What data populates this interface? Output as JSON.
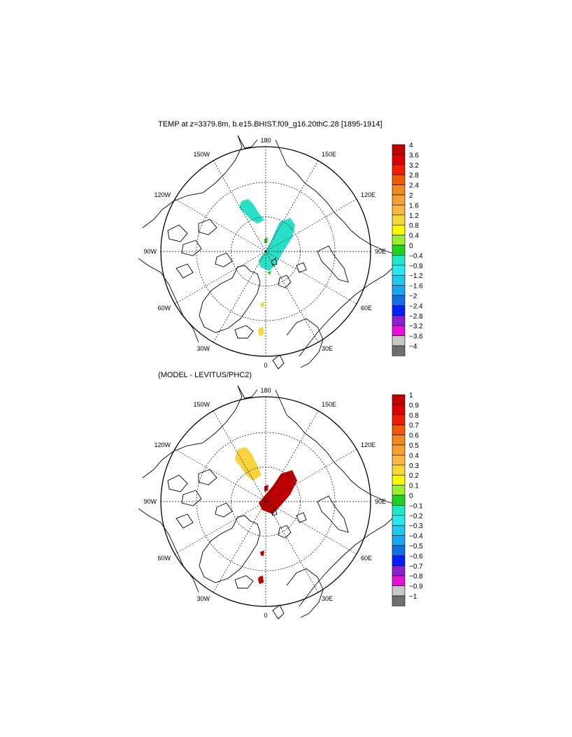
{
  "panels": [
    {
      "title": "TEMP at z=3379.8m, b.e15.BHIST.f09_g16.20thC.28 [1895-1914]",
      "colorbar": {
        "labels": [
          "4",
          "3.6",
          "3.2",
          "2.8",
          "2.4",
          "2",
          "1.6",
          "1.2",
          "0.8",
          "0.4",
          "0",
          "−0.4",
          "−0.8",
          "−1.2",
          "−1.6",
          "−2",
          "−2.4",
          "−2.8",
          "−3.2",
          "−3.6",
          "−4"
        ],
        "colors": [
          "#c00000",
          "#d80000",
          "#f01e00",
          "#f05a00",
          "#f08a1e",
          "#f5a030",
          "#f8b840",
          "#f5d83a",
          "#f8f800",
          "#9aee30",
          "#1ed21e",
          "#1ee8c8",
          "#2ae8f0",
          "#20c8f0",
          "#18a8f0",
          "#1070e8",
          "#0020ff",
          "#8a20d0",
          "#e810d8",
          "#c8c8c8",
          "#6e6e6e"
        ]
      },
      "patches": [
        {
          "name": "patch-canada-basin",
          "color": "#28e0c8",
          "pts": [
            [
              -35,
              -72
            ],
            [
              -25,
              -75
            ],
            [
              -18,
              -68
            ],
            [
              -10,
              -55
            ],
            [
              -2,
              -45
            ],
            [
              -12,
              -40
            ],
            [
              -22,
              -46
            ],
            [
              -30,
              -55
            ],
            [
              -38,
              -62
            ]
          ]
        },
        {
          "name": "patch-eurasian-basin",
          "color": "#28e0c8",
          "pts": [
            [
              20,
              -42
            ],
            [
              35,
              -48
            ],
            [
              42,
              -38
            ],
            [
              38,
              -20
            ],
            [
              25,
              0
            ],
            [
              15,
              18
            ],
            [
              5,
              28
            ],
            [
              -8,
              22
            ],
            [
              -10,
              12
            ],
            [
              -2,
              2
            ],
            [
              8,
              -15
            ],
            [
              14,
              -30
            ]
          ]
        },
        {
          "name": "patch-green-a",
          "color": "#28c828",
          "pts": [
            [
              -2,
              -18
            ],
            [
              3,
              -20
            ],
            [
              2,
              -12
            ],
            [
              -2,
              -12
            ]
          ]
        },
        {
          "name": "patch-green-b",
          "color": "#28c828",
          "pts": [
            [
              2,
              30
            ],
            [
              8,
              28
            ],
            [
              6,
              34
            ]
          ]
        },
        {
          "name": "patch-yellow-a",
          "color": "#f5d83a",
          "pts": [
            [
              -8,
              74
            ],
            [
              -2,
              72
            ],
            [
              -3,
              80
            ],
            [
              -7,
              79
            ]
          ]
        },
        {
          "name": "patch-yellow-b",
          "color": "#f5d83a",
          "pts": [
            [
              -10,
              110
            ],
            [
              -4,
              108
            ],
            [
              -2,
              118
            ],
            [
              -8,
              122
            ],
            [
              -11,
              116
            ]
          ]
        }
      ]
    },
    {
      "title": "(MODEL - LEVITUS/PHC2)",
      "colorbar": {
        "labels": [
          "1",
          "0.9",
          "0.8",
          "0.7",
          "0.6",
          "0.5",
          "0.4",
          "0.3",
          "0.2",
          "0.1",
          "0",
          "−0.1",
          "−0.2",
          "−0.3",
          "−0.4",
          "−0.5",
          "−0.6",
          "−0.7",
          "−0.8",
          "−0.9",
          "−1"
        ],
        "colors": [
          "#c00000",
          "#d80000",
          "#f01e00",
          "#f05a00",
          "#f08a1e",
          "#f5a030",
          "#f8b840",
          "#f5d83a",
          "#f8f800",
          "#9aee30",
          "#1ed21e",
          "#1ee8c8",
          "#2ae8f0",
          "#20c8f0",
          "#18a8f0",
          "#1070e8",
          "#0020ff",
          "#8a20d0",
          "#e810d8",
          "#c8c8c8",
          "#6e6e6e"
        ]
      },
      "patches": [
        {
          "name": "patch-canada-basin",
          "color": "#f8d43c",
          "pts": [
            [
              -40,
              -75
            ],
            [
              -28,
              -78
            ],
            [
              -20,
              -68
            ],
            [
              -12,
              -52
            ],
            [
              -6,
              -38
            ],
            [
              -18,
              -30
            ],
            [
              -28,
              -38
            ],
            [
              -36,
              -50
            ],
            [
              -44,
              -60
            ]
          ]
        },
        {
          "name": "patch-eurasian-basin",
          "color": "#c00000",
          "pts": [
            [
              22,
              -40
            ],
            [
              38,
              -45
            ],
            [
              45,
              -30
            ],
            [
              35,
              -10
            ],
            [
              22,
              5
            ],
            [
              10,
              18
            ],
            [
              -5,
              12
            ],
            [
              -10,
              2
            ],
            [
              -2,
              -8
            ],
            [
              10,
              -22
            ]
          ]
        },
        {
          "name": "patch-red-a",
          "color": "#c00000",
          "pts": [
            [
              -2,
              -22
            ],
            [
              4,
              -24
            ],
            [
              3,
              -16
            ],
            [
              -2,
              -14
            ]
          ]
        },
        {
          "name": "patch-red-b",
          "color": "#c00000",
          "pts": [
            [
              -8,
              72
            ],
            [
              -2,
              70
            ],
            [
              -3,
              78
            ],
            [
              -7,
              77
            ]
          ]
        },
        {
          "name": "patch-red-c",
          "color": "#c00000",
          "pts": [
            [
              -10,
              108
            ],
            [
              -4,
              106
            ],
            [
              -3,
              116
            ],
            [
              -9,
              118
            ],
            [
              -11,
              112
            ]
          ]
        }
      ]
    }
  ],
  "map": {
    "lon_labels": {
      "top": "180",
      "bottom": "0",
      "left": "90W",
      "right": "90E",
      "n150w": "150W",
      "n120w": "120W",
      "s60w": "60W",
      "s30w": "30W",
      "n150e": "150E",
      "n120e": "120E",
      "s60e": "60E",
      "s30e": "30E"
    },
    "colors": {
      "coast": "#000000",
      "grid": "#000000",
      "border": "#000000"
    }
  }
}
